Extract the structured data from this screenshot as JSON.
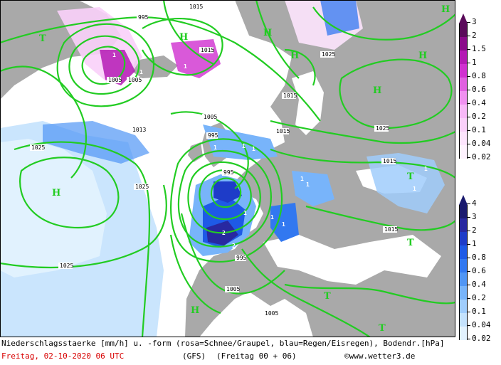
{
  "caption": "Niederschlagsstaerke [mm/h] u. -form (rosa=Schnee/Graupel, blau=Regen/Eisregen), Bodendr.[hPa]",
  "footer": {
    "date": "Freitag, 02-10-2020  06 UTC",
    "model": "(GFS)",
    "run": "(Freitag 00 + 06)",
    "copyright_symbol": "©",
    "site": "www.wetter3.de"
  },
  "snow_scale": {
    "labels": [
      "3",
      "2",
      "1.5",
      "1",
      "0.8",
      "0.6",
      "0.4",
      "0.2",
      "0.1",
      "0.04",
      "0.02"
    ],
    "colors": [
      "#5a0a5a",
      "#8a0a8a",
      "#b41ab4",
      "#d030d0",
      "#e060e0",
      "#f090f0",
      "#f8b8f8",
      "#fad0fa",
      "#fde4fd",
      "#fef2fe"
    ]
  },
  "rain_scale": {
    "labels": [
      "4",
      "3",
      "2",
      "1",
      "0.8",
      "0.6",
      "0.4",
      "0.2",
      "0.1",
      "0.04",
      "0.02"
    ],
    "colors": [
      "#1a1a6e",
      "#2828a0",
      "#1e3cc8",
      "#1e5ae6",
      "#3278f0",
      "#5096f5",
      "#78b4fa",
      "#a0cdfc",
      "#c4e2fd",
      "#e2f2fe"
    ]
  },
  "isobar_labels": [
    "1015",
    "995",
    "1015",
    "1005",
    "1025",
    "1015",
    "1005",
    "1025",
    "995",
    "1013",
    "1015",
    "1025",
    "1015",
    "1025",
    "995",
    "995",
    "1015",
    "1025",
    "1005",
    "1005",
    "1005"
  ],
  "pressure_centers": [
    "H",
    "H",
    "H",
    "H",
    "H",
    "H",
    "H",
    "T",
    "T",
    "T",
    "T",
    "T",
    "H"
  ],
  "precip_values": [
    "1",
    "1",
    "1",
    "2",
    "2",
    "1",
    "1",
    "1",
    "1",
    "1",
    "1",
    "1",
    "1",
    "1",
    "1"
  ],
  "colors": {
    "land": "#a9a9a9",
    "sea": "#ffffff",
    "isobar": "#22cc22",
    "label_bg": "#ffffff",
    "center_text": "#22cc22"
  }
}
